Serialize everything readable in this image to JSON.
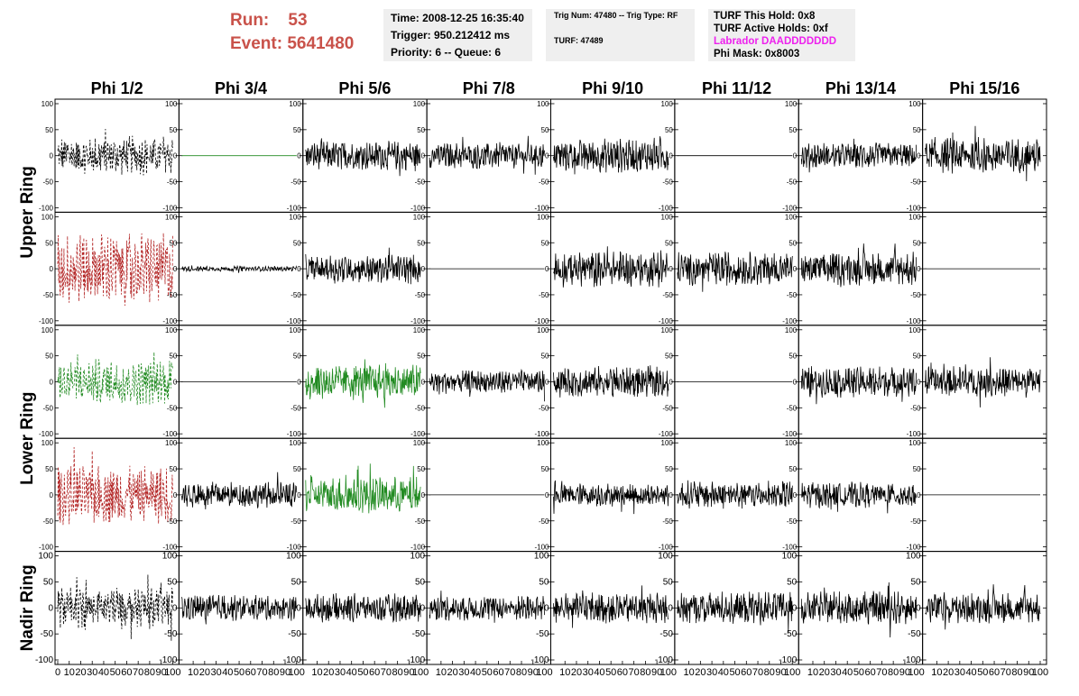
{
  "header": {
    "run_label": "Run:",
    "run_value": "53",
    "event_label": "Event:",
    "event_value": "5641480"
  },
  "time_box": {
    "line1": "Time: 2008-12-25 16:35:40",
    "line2": "Trigger: 950.212412 ms",
    "line3": "Priority: 6 -- Queue: 6"
  },
  "trig_box": {
    "line1": "Trig Num: 47480 -- Trig Type: RF",
    "line2": "TURF: 47489"
  },
  "turf_box": {
    "line1": "TURF This Hold: 0x8",
    "line2": "TURF Active Holds: 0xf",
    "line3": "Labrador DAADDDDDDD",
    "line4": "Phi Mask: 0x8003"
  },
  "colors": {
    "run_info": "#c9524a",
    "labrador": "#ee22ee",
    "black_trace": "#000000",
    "red_trace": "#b22222",
    "green_trace": "#228b22",
    "box_bg": "#efefef"
  },
  "chart_data": {
    "type": "line",
    "columns": [
      "Phi 1/2",
      "Phi 3/4",
      "Phi 5/6",
      "Phi 7/8",
      "Phi 9/10",
      "Phi 11/12",
      "Phi 13/14",
      "Phi 15/16"
    ],
    "rows": [
      "Upper Ring",
      "Lower Ring",
      "Nadir Ring"
    ],
    "ylim": [
      -100,
      100
    ],
    "xlim": [
      0,
      100
    ],
    "y_ticks": [
      100,
      50,
      0,
      -50,
      -100
    ],
    "x_tick_labels_first": [
      "0",
      "10",
      "20",
      "30",
      "40",
      "50",
      "60",
      "70",
      "80",
      "90",
      "100"
    ],
    "x_tick_labels": [
      "10",
      "20",
      "30",
      "40",
      "50",
      "60",
      "70",
      "80",
      "90",
      "100"
    ],
    "panels": [
      [
        {
          "color": "black",
          "amp": 30,
          "style": "dashed"
        },
        {
          "color": "green",
          "amp": 0,
          "style": "solid"
        },
        {
          "color": "black",
          "amp": 22,
          "style": "solid"
        },
        {
          "color": "black",
          "amp": 20,
          "style": "solid"
        },
        {
          "color": "black",
          "amp": 26,
          "style": "solid"
        },
        {
          "color": "black",
          "amp": 0,
          "style": "solid"
        },
        {
          "color": "black",
          "amp": 20,
          "style": "solid"
        },
        {
          "color": "black",
          "amp": 28,
          "style": "solid"
        }
      ],
      [
        {
          "color": "red",
          "amp": 55,
          "style": "dashed"
        },
        {
          "color": "black",
          "amp": 4,
          "style": "solid"
        },
        {
          "color": "black",
          "amp": 22,
          "style": "solid"
        },
        {
          "color": "black",
          "amp": 0,
          "style": "solid"
        },
        {
          "color": "black",
          "amp": 28,
          "style": "solid"
        },
        {
          "color": "black",
          "amp": 26,
          "style": "solid"
        },
        {
          "color": "black",
          "amp": 26,
          "style": "solid"
        },
        {
          "color": "black",
          "amp": 0,
          "style": "solid"
        }
      ],
      [
        {
          "color": "green",
          "amp": 35,
          "style": "dashed"
        },
        {
          "color": "black",
          "amp": 0,
          "style": "solid"
        },
        {
          "color": "green",
          "amp": 28,
          "style": "solid"
        },
        {
          "color": "black",
          "amp": 18,
          "style": "solid"
        },
        {
          "color": "black",
          "amp": 24,
          "style": "solid"
        },
        {
          "color": "black",
          "amp": 0,
          "style": "solid"
        },
        {
          "color": "black",
          "amp": 24,
          "style": "solid"
        },
        {
          "color": "black",
          "amp": 24,
          "style": "solid"
        }
      ],
      [
        {
          "color": "red",
          "amp": 45,
          "style": "dashed"
        },
        {
          "color": "black",
          "amp": 20,
          "style": "solid"
        },
        {
          "color": "green",
          "amp": 28,
          "style": "solid"
        },
        {
          "color": "black",
          "amp": 0,
          "style": "solid"
        },
        {
          "color": "black",
          "amp": 18,
          "style": "solid"
        },
        {
          "color": "black",
          "amp": 22,
          "style": "solid"
        },
        {
          "color": "black",
          "amp": 20,
          "style": "solid"
        },
        {
          "color": "black",
          "amp": 0,
          "style": "solid"
        }
      ],
      [
        {
          "color": "black",
          "amp": 32,
          "style": "dashed"
        },
        {
          "color": "black",
          "amp": 20,
          "style": "solid"
        },
        {
          "color": "black",
          "amp": 22,
          "style": "solid"
        },
        {
          "color": "black",
          "amp": 20,
          "style": "solid"
        },
        {
          "color": "black",
          "amp": 24,
          "style": "solid"
        },
        {
          "color": "black",
          "amp": 26,
          "style": "solid"
        },
        {
          "color": "black",
          "amp": 26,
          "style": "solid"
        },
        {
          "color": "black",
          "amp": 24,
          "style": "solid"
        }
      ]
    ]
  }
}
